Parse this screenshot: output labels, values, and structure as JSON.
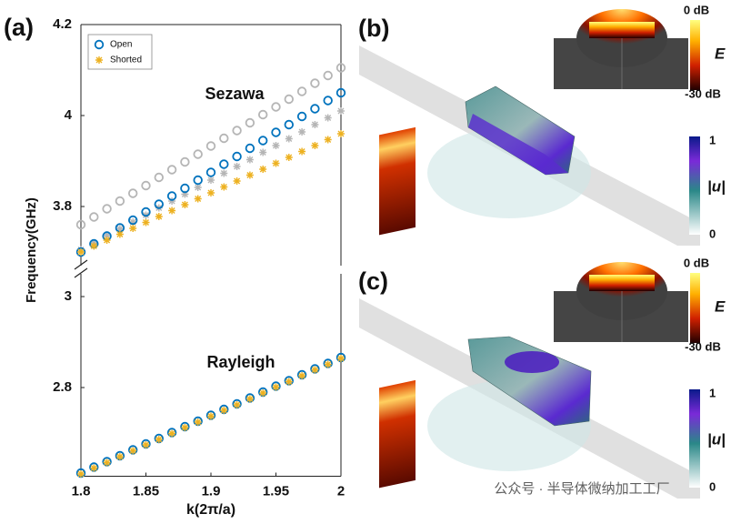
{
  "chart_data": [
    {
      "type": "scatter",
      "panel_label": "(a)",
      "ylabel": "Frequency(GHz)",
      "annotation": "Sezawa",
      "xlim": [
        1.8,
        2
      ],
      "ylim": [
        3.67,
        4.2
      ],
      "yticks": [
        3.8,
        4,
        4.2
      ],
      "x": [
        1.8,
        1.81,
        1.82,
        1.83,
        1.84,
        1.85,
        1.86,
        1.87,
        1.88,
        1.89,
        1.9,
        1.91,
        1.92,
        1.93,
        1.94,
        1.95,
        1.96,
        1.97,
        1.98,
        1.99,
        2
      ],
      "series": [
        {
          "color": "#b5b5b5",
          "marker": "o",
          "values": [
            3.76,
            3.777,
            3.795,
            3.812,
            3.829,
            3.846,
            3.864,
            3.881,
            3.898,
            3.915,
            3.933,
            3.95,
            3.967,
            3.984,
            4.002,
            4.019,
            4.036,
            4.053,
            4.071,
            4.088,
            4.105
          ]
        },
        {
          "color": "#b5b5b5",
          "marker": "*",
          "values": [
            3.705,
            3.72,
            3.736,
            3.751,
            3.766,
            3.781,
            3.797,
            3.812,
            3.827,
            3.842,
            3.858,
            3.873,
            3.888,
            3.903,
            3.919,
            3.934,
            3.949,
            3.964,
            3.98,
            3.995,
            4.01
          ]
        },
        {
          "name": "Open",
          "color": "#0072bd",
          "marker": "o",
          "values": [
            3.7,
            3.718,
            3.735,
            3.753,
            3.77,
            3.788,
            3.805,
            3.823,
            3.84,
            3.858,
            3.875,
            3.893,
            3.91,
            3.928,
            3.945,
            3.963,
            3.98,
            3.998,
            4.015,
            4.033,
            4.05
          ]
        },
        {
          "name": "Shorted",
          "color": "#edb120",
          "marker": "*",
          "values": [
            3.7,
            3.713,
            3.726,
            3.739,
            3.752,
            3.765,
            3.778,
            3.791,
            3.804,
            3.817,
            3.83,
            3.843,
            3.856,
            3.869,
            3.882,
            3.895,
            3.908,
            3.921,
            3.934,
            3.947,
            3.96
          ]
        }
      ]
    },
    {
      "type": "scatter",
      "xlabel": "k(2π/a)",
      "annotation": "Rayleigh",
      "xlim": [
        1.8,
        2
      ],
      "xticks": [
        1.8,
        1.85,
        1.9,
        1.95,
        2
      ],
      "ylim": [
        2.605,
        3.05
      ],
      "yticks": [
        2.8,
        3
      ],
      "x": [
        1.8,
        1.81,
        1.82,
        1.83,
        1.84,
        1.85,
        1.86,
        1.87,
        1.88,
        1.89,
        1.9,
        1.91,
        1.92,
        1.93,
        1.94,
        1.95,
        1.96,
        1.97,
        1.98,
        1.99,
        2
      ],
      "series": [
        {
          "color": "#0072bd",
          "marker": "o",
          "values": [
            2.612,
            2.625,
            2.637,
            2.65,
            2.663,
            2.676,
            2.688,
            2.701,
            2.714,
            2.726,
            2.739,
            2.752,
            2.764,
            2.777,
            2.79,
            2.803,
            2.815,
            2.828,
            2.841,
            2.853,
            2.866
          ]
        },
        {
          "color": "#edb120",
          "marker": "*",
          "values": [
            2.61,
            2.623,
            2.635,
            2.648,
            2.661,
            2.674,
            2.686,
            2.699,
            2.712,
            2.724,
            2.737,
            2.75,
            2.762,
            2.775,
            2.788,
            2.801,
            2.813,
            2.826,
            2.839,
            2.851,
            2.864
          ]
        }
      ]
    }
  ],
  "panels": [
    {
      "label": "(b)",
      "e_max": "0 dB",
      "e_min": "-30 dB",
      "e_symbol": "E",
      "u_symbol": "|u|",
      "u_max": "1",
      "u_min": "0"
    },
    {
      "label": "(c)",
      "e_max": "0 dB",
      "e_min": "-30 dB",
      "e_symbol": "E",
      "u_symbol": "|u|",
      "u_max": "1",
      "u_min": "0"
    }
  ],
  "watermark": "公众号 · 半导体微纳加工工厂"
}
